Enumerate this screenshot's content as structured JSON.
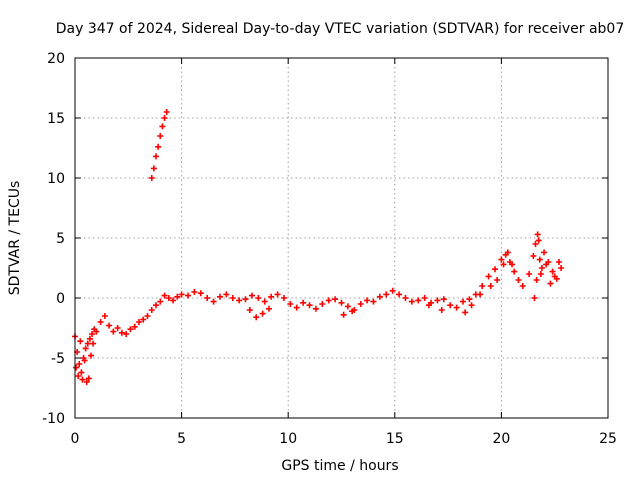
{
  "chart_data": {
    "type": "scatter",
    "title": "Day 347 of 2024, Sidereal Day-to-day VTEC variation (SDTVAR) for receiver ab07",
    "xlabel": "GPS time / hours",
    "ylabel": "SDTVAR / TECUs",
    "xlim": [
      0,
      25
    ],
    "ylim": [
      -10,
      20
    ],
    "xticks": [
      0,
      5,
      10,
      15,
      20,
      25
    ],
    "yticks": [
      -10,
      -5,
      0,
      5,
      10,
      15,
      20
    ],
    "xtick_labels": [
      "0",
      "5",
      "10",
      "15",
      "20",
      "25"
    ],
    "ytick_labels": [
      "-10",
      "-5",
      "0",
      "5",
      "10",
      "15",
      "20"
    ],
    "grid": true,
    "marker": "plus",
    "color": "#ff0000",
    "series": [
      {
        "name": "ab07",
        "x": [
          0.0,
          0.1,
          0.2,
          0.3,
          0.4,
          0.5,
          0.6,
          0.7,
          0.8,
          0.9,
          1.0,
          1.2,
          1.4,
          1.6,
          1.8,
          2.0,
          2.2,
          2.4,
          2.6,
          2.8,
          3.0,
          3.2,
          3.4,
          3.6,
          3.8,
          4.0,
          4.2,
          4.4,
          4.6,
          4.8,
          5.0,
          5.3,
          5.6,
          5.9,
          6.2,
          6.5,
          6.8,
          7.1,
          7.4,
          7.7,
          8.0,
          8.3,
          8.6,
          8.9,
          9.2,
          9.5,
          9.8,
          10.1,
          10.4,
          10.7,
          11.0,
          11.3,
          11.6,
          11.9,
          12.2,
          12.5,
          12.8,
          13.1,
          13.4,
          13.7,
          14.0,
          14.3,
          14.6,
          14.9,
          15.2,
          15.5,
          15.8,
          16.1,
          16.4,
          16.7,
          17.0,
          17.3,
          17.6,
          17.9,
          18.2,
          18.5,
          18.8,
          19.1,
          19.4,
          19.7,
          20.0,
          20.2,
          20.4,
          20.6,
          20.8,
          21.0,
          21.3,
          21.5,
          21.6,
          21.7,
          21.8,
          21.9,
          22.0,
          22.2,
          22.4,
          22.6,
          22.8,
          0.05,
          0.15,
          0.25,
          0.35,
          0.45,
          0.55,
          0.65,
          0.75,
          0.85,
          3.6,
          3.7,
          3.8,
          3.9,
          4.0,
          4.1,
          4.2,
          4.3,
          8.2,
          8.5,
          8.8,
          9.1,
          12.6,
          13.0,
          16.6,
          17.2,
          18.3,
          18.6,
          19.0,
          19.5,
          19.8,
          20.1,
          20.3,
          20.5,
          21.55,
          21.65,
          21.75,
          21.85,
          22.1,
          22.3,
          22.5,
          22.7
        ],
        "y": [
          -3.2,
          -4.5,
          -5.5,
          -6.2,
          -5.0,
          -4.2,
          -3.8,
          -3.4,
          -3.0,
          -2.6,
          -2.8,
          -2.0,
          -1.5,
          -2.3,
          -2.8,
          -2.5,
          -2.9,
          -3.0,
          -2.6,
          -2.4,
          -2.0,
          -1.8,
          -1.5,
          -1.0,
          -0.6,
          -0.3,
          0.2,
          0.0,
          -0.2,
          0.1,
          0.3,
          0.2,
          0.5,
          0.4,
          0.0,
          -0.3,
          0.1,
          0.3,
          0.0,
          -0.2,
          -0.1,
          0.2,
          0.0,
          -0.3,
          0.1,
          0.3,
          0.0,
          -0.5,
          -0.8,
          -0.4,
          -0.6,
          -0.9,
          -0.5,
          -0.2,
          -0.1,
          -0.4,
          -0.7,
          -1.0,
          -0.5,
          -0.2,
          -0.3,
          0.1,
          0.3,
          0.6,
          0.3,
          0.0,
          -0.3,
          -0.2,
          0.0,
          -0.4,
          -0.2,
          -0.1,
          -0.6,
          -0.8,
          -0.3,
          -0.1,
          0.3,
          1.0,
          1.8,
          2.4,
          3.2,
          3.6,
          3.0,
          2.2,
          1.5,
          1.0,
          2.0,
          3.5,
          4.5,
          5.3,
          3.2,
          2.5,
          3.8,
          3.0,
          2.2,
          1.6,
          2.5,
          -5.8,
          -6.5,
          -3.6,
          -6.8,
          -5.2,
          -7.0,
          -6.7,
          -4.8,
          -3.8,
          10.0,
          10.8,
          11.8,
          12.6,
          13.5,
          14.3,
          15.0,
          15.5,
          -1.0,
          -1.6,
          -1.3,
          -0.9,
          -1.4,
          -1.1,
          -0.6,
          -1.0,
          -1.2,
          -0.6,
          0.3,
          1.0,
          1.5,
          2.8,
          3.8,
          2.8,
          0.0,
          1.5,
          4.8,
          2.0,
          2.8,
          1.2,
          1.8,
          3.0
        ]
      }
    ]
  }
}
